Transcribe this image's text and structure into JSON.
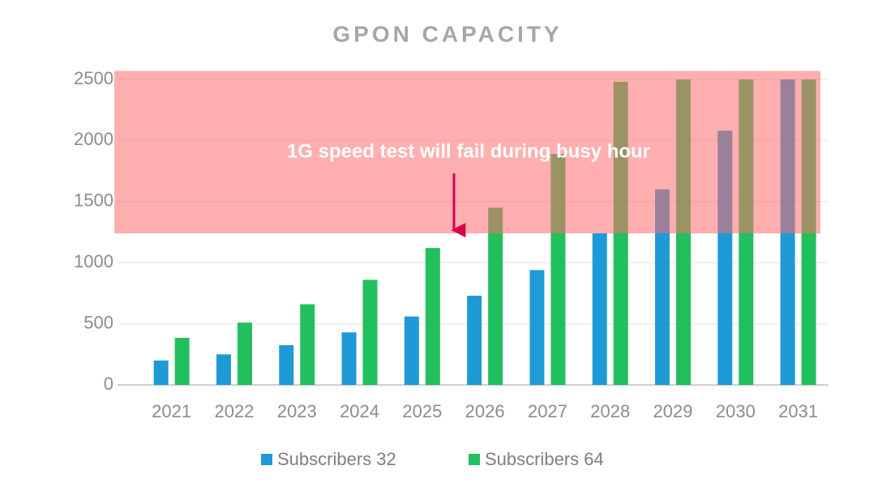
{
  "chart_data": {
    "type": "bar",
    "title": "GPON CAPACITY",
    "categories": [
      "2021",
      "2022",
      "2023",
      "2024",
      "2025",
      "2026",
      "2027",
      "2028",
      "2029",
      "2030",
      "2031"
    ],
    "series": [
      {
        "name": "Subscribers 32",
        "color": "#1e9ad6",
        "values": [
          200,
          250,
          325,
          430,
          560,
          730,
          940,
          1240,
          1600,
          2080,
          2500
        ]
      },
      {
        "name": "Subscribers 64",
        "color": "#22bf5e",
        "values": [
          385,
          510,
          660,
          860,
          1120,
          1450,
          1890,
          2480,
          2500,
          2500,
          2500
        ]
      }
    ],
    "ylim": [
      0,
      2500
    ],
    "yticks": [
      0,
      500,
      1000,
      1500,
      2000,
      2500
    ],
    "grid": true,
    "highlight_band": {
      "from": 1240,
      "to": 2570,
      "color": "#ff6e6e"
    },
    "annotation": "1G speed test will fail during busy hour"
  }
}
